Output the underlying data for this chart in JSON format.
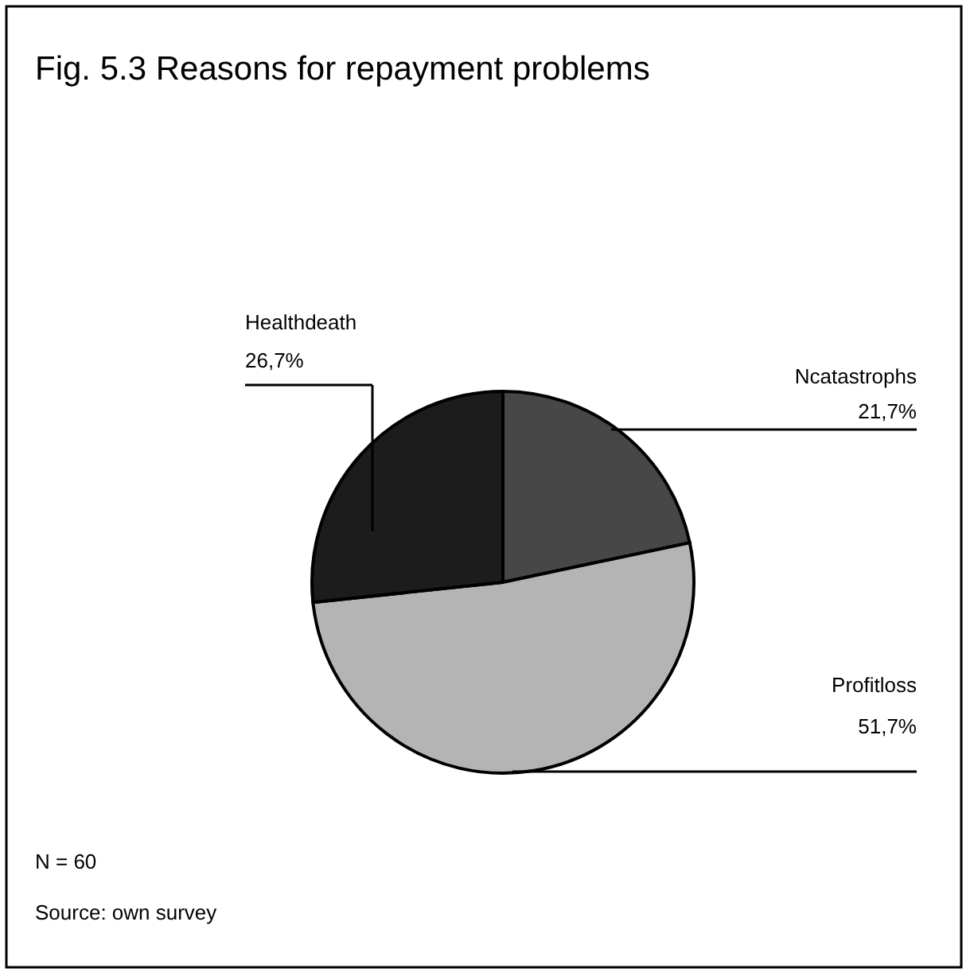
{
  "chart_data": {
    "type": "pie",
    "title": "Fig. 5.3 Reasons for repayment problems",
    "categories": [
      "Ncatastrophs",
      "Profitloss",
      "Healthdeath"
    ],
    "values": [
      21.7,
      51.7,
      26.7
    ],
    "colors": [
      "#474747",
      "#b4b4b4",
      "#1c1c1c"
    ],
    "value_labels": [
      "21,7%",
      "51,7%",
      "26,7%"
    ],
    "legend": false,
    "annotations": [
      "N = 60",
      "Source: own survey"
    ]
  }
}
